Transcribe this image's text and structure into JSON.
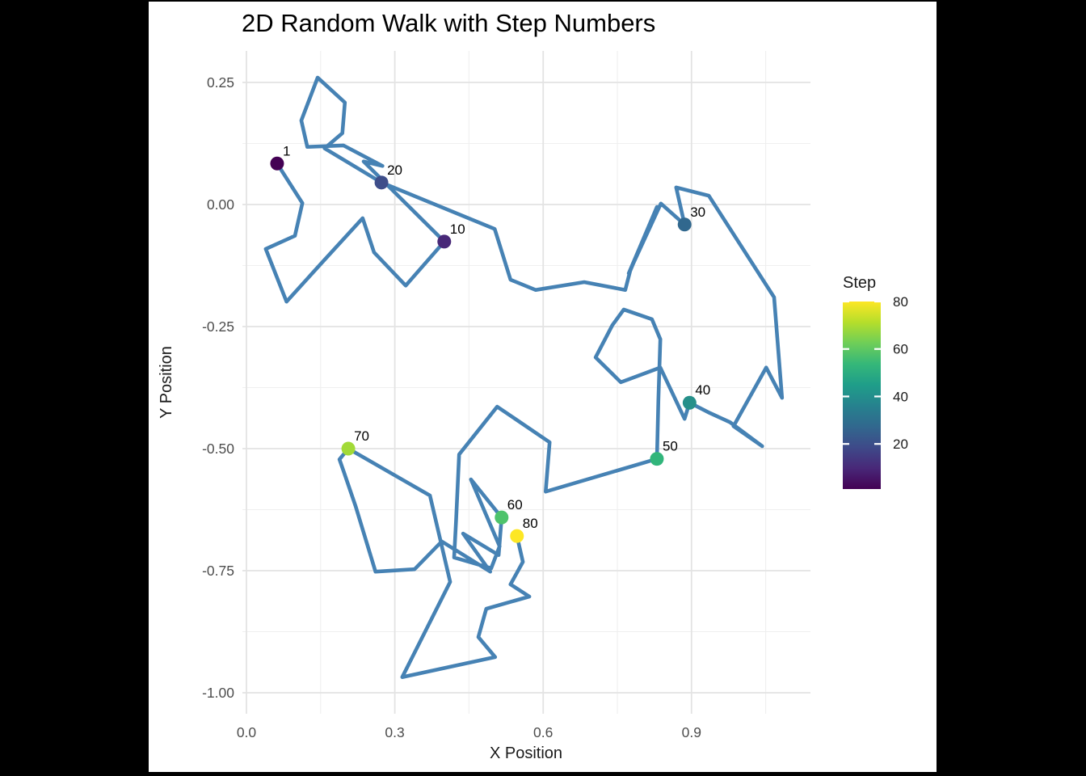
{
  "title": "2D Random Walk with Step Numbers",
  "axes": {
    "x": {
      "label": "X Position",
      "ticks": [
        {
          "value": 0.0,
          "label": "0.0"
        },
        {
          "value": 0.3,
          "label": "0.3"
        },
        {
          "value": 0.6,
          "label": "0.6"
        },
        {
          "value": 0.9,
          "label": "0.9"
        }
      ],
      "minor_gridlines": [
        0.15,
        0.45,
        0.75,
        1.05
      ]
    },
    "y": {
      "label": "Y Position",
      "ticks": [
        {
          "value": 0.25,
          "label": "0.25"
        },
        {
          "value": 0.0,
          "label": "0.00"
        },
        {
          "value": -0.25,
          "label": "-0.25"
        },
        {
          "value": -0.5,
          "label": "-0.50"
        },
        {
          "value": -0.75,
          "label": "-0.75"
        },
        {
          "value": -1.0,
          "label": "-1.00"
        }
      ],
      "minor_gridlines": [
        0.125,
        -0.125,
        -0.375,
        -0.625,
        -0.875
      ]
    }
  },
  "legend": {
    "title": "Step",
    "position": "right",
    "ticks": [
      {
        "value": 80,
        "label": "80"
      },
      {
        "value": 60,
        "label": "60"
      },
      {
        "value": 40,
        "label": "40"
      },
      {
        "value": 20,
        "label": "20"
      }
    ],
    "range": [
      1,
      80
    ],
    "gradient_bottom_to_top": [
      "#440154",
      "#482878",
      "#3e4a89",
      "#31688e",
      "#26828e",
      "#1f9e89",
      "#35b779",
      "#6ece58",
      "#b5de2b",
      "#fde725"
    ]
  },
  "colors": {
    "walk_line": "#4682b4",
    "grid_major": "#e3e3e3",
    "grid_minor": "#efefef",
    "background": "#ffffff",
    "frame_bars": "#000000",
    "tick_text": "#4d4d4d"
  },
  "chart_data": {
    "type": "line",
    "title": "2D Random Walk with Step Numbers",
    "xlabel": "X Position",
    "ylabel": "Y Position",
    "xlim": [
      -0.008,
      1.14
    ],
    "ylim": [
      -1.045,
      0.315
    ],
    "grid": "on",
    "legend_position": "right",
    "series": [
      {
        "name": "walk",
        "color": "#4682b4",
        "points": [
          [
            0.062,
            0.084
          ],
          [
            0.113,
            0.003
          ],
          [
            0.098,
            -0.064
          ],
          [
            0.039,
            -0.091
          ],
          [
            0.081,
            -0.199
          ],
          [
            0.158,
            -0.113
          ],
          [
            0.235,
            -0.028
          ],
          [
            0.258,
            -0.098
          ],
          [
            0.322,
            -0.166
          ],
          [
            0.4,
            -0.076
          ],
          [
            0.237,
            0.088
          ],
          [
            0.275,
            0.079
          ],
          [
            0.196,
            0.121
          ],
          [
            0.123,
            0.118
          ],
          [
            0.111,
            0.172
          ],
          [
            0.144,
            0.26
          ],
          [
            0.199,
            0.209
          ],
          [
            0.194,
            0.146
          ],
          [
            0.158,
            0.115
          ],
          [
            0.273,
            0.045
          ],
          [
            0.502,
            -0.05
          ],
          [
            0.534,
            -0.154
          ],
          [
            0.585,
            -0.175
          ],
          [
            0.683,
            -0.159
          ],
          [
            0.766,
            -0.175
          ],
          [
            0.776,
            -0.136
          ],
          [
            0.83,
            -0.005
          ],
          [
            0.773,
            -0.141
          ],
          [
            0.838,
            0.002
          ],
          [
            0.886,
            -0.041
          ],
          [
            0.869,
            0.035
          ],
          [
            0.935,
            0.018
          ],
          [
            1.067,
            -0.19
          ],
          [
            1.083,
            -0.396
          ],
          [
            1.051,
            -0.334
          ],
          [
            0.985,
            -0.454
          ],
          [
            1.043,
            -0.495
          ],
          [
            0.978,
            -0.446
          ],
          [
            0.937,
            -0.427
          ],
          [
            0.896,
            -0.406
          ],
          [
            0.886,
            -0.439
          ],
          [
            0.837,
            -0.334
          ],
          [
            0.757,
            -0.364
          ],
          [
            0.706,
            -0.313
          ],
          [
            0.74,
            -0.247
          ],
          [
            0.763,
            -0.215
          ],
          [
            0.82,
            -0.235
          ],
          [
            0.837,
            -0.276
          ],
          [
            0.833,
            -0.4
          ],
          [
            0.83,
            -0.521
          ],
          [
            0.605,
            -0.588
          ],
          [
            0.613,
            -0.487
          ],
          [
            0.507,
            -0.414
          ],
          [
            0.43,
            -0.512
          ],
          [
            0.424,
            -0.645
          ],
          [
            0.42,
            -0.723
          ],
          [
            0.495,
            -0.745
          ],
          [
            0.512,
            -0.7
          ],
          [
            0.454,
            -0.563
          ],
          [
            0.516,
            -0.641
          ],
          [
            0.51,
            -0.718
          ],
          [
            0.438,
            -0.674
          ],
          [
            0.493,
            -0.752
          ],
          [
            0.395,
            -0.69
          ],
          [
            0.34,
            -0.747
          ],
          [
            0.261,
            -0.752
          ],
          [
            0.221,
            -0.619
          ],
          [
            0.196,
            -0.545
          ],
          [
            0.188,
            -0.522
          ],
          [
            0.206,
            -0.5
          ],
          [
            0.371,
            -0.596
          ],
          [
            0.412,
            -0.773
          ],
          [
            0.315,
            -0.968
          ],
          [
            0.503,
            -0.927
          ],
          [
            0.469,
            -0.886
          ],
          [
            0.485,
            -0.828
          ],
          [
            0.572,
            -0.803
          ],
          [
            0.534,
            -0.778
          ],
          [
            0.559,
            -0.732
          ],
          [
            0.547,
            -0.679
          ]
        ]
      }
    ],
    "labeled_points": [
      {
        "step": 1,
        "label": "1",
        "x": 0.062,
        "y": 0.084,
        "color": "#440154"
      },
      {
        "step": 10,
        "label": "10",
        "x": 0.4,
        "y": -0.076,
        "color": "#482878"
      },
      {
        "step": 20,
        "label": "20",
        "x": 0.273,
        "y": 0.045,
        "color": "#3e4e8a"
      },
      {
        "step": 30,
        "label": "30",
        "x": 0.886,
        "y": -0.041,
        "color": "#31688e"
      },
      {
        "step": 40,
        "label": "40",
        "x": 0.896,
        "y": -0.406,
        "color": "#26908a"
      },
      {
        "step": 50,
        "label": "50",
        "x": 0.83,
        "y": -0.521,
        "color": "#31b57b"
      },
      {
        "step": 60,
        "label": "60",
        "x": 0.516,
        "y": -0.641,
        "color": "#4ec36b"
      },
      {
        "step": 70,
        "label": "70",
        "x": 0.206,
        "y": -0.5,
        "color": "#a2da37"
      },
      {
        "step": 80,
        "label": "80",
        "x": 0.547,
        "y": -0.679,
        "color": "#fde725"
      }
    ]
  }
}
